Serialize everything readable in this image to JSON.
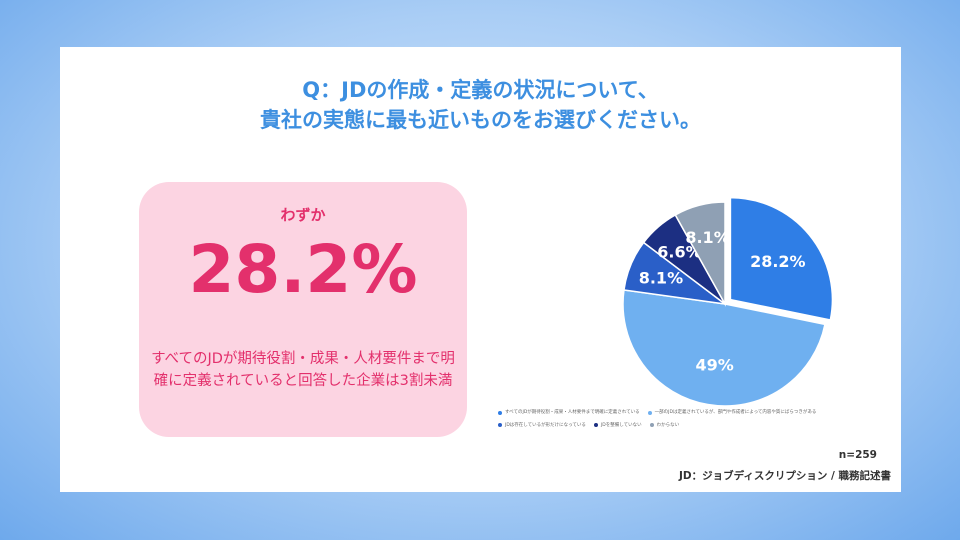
{
  "title": {
    "line1": "Q：JDの作成・定義の状況について、",
    "line2": "貴社の実態に最も近いものをお選びください。"
  },
  "highlight": {
    "label": "わずか",
    "value": "28.2%",
    "description": "すべてのJDが期待役割・成果・人材要件まで明確に定義されていると回答した企業は3割未満"
  },
  "chart_data": {
    "type": "pie",
    "categories": [
      "すべてのJDが期待役割・成果・人材要件まで明確に定義されている",
      "一部のJDは定義されているが、部門や作成者によって内容や質にばらつきがある",
      "JDは存在しているが形だけになっている",
      "JDを整備していない",
      "わからない"
    ],
    "values": [
      28.2,
      49,
      8.1,
      6.6,
      8.1
    ],
    "labels": [
      "28.2%",
      "49%",
      "8.1%",
      "6.6%",
      "8.1%"
    ],
    "colors": [
      "#2f7ee6",
      "#6fb0f0",
      "#2a5fc8",
      "#1c2f82",
      "#8fa0b4"
    ],
    "exploded": [
      true,
      false,
      false,
      false,
      false
    ],
    "legend_position": "bottom"
  },
  "sample_size": "n=259",
  "footnote": "JD：ジョブディスクリプション / 職務記述書"
}
